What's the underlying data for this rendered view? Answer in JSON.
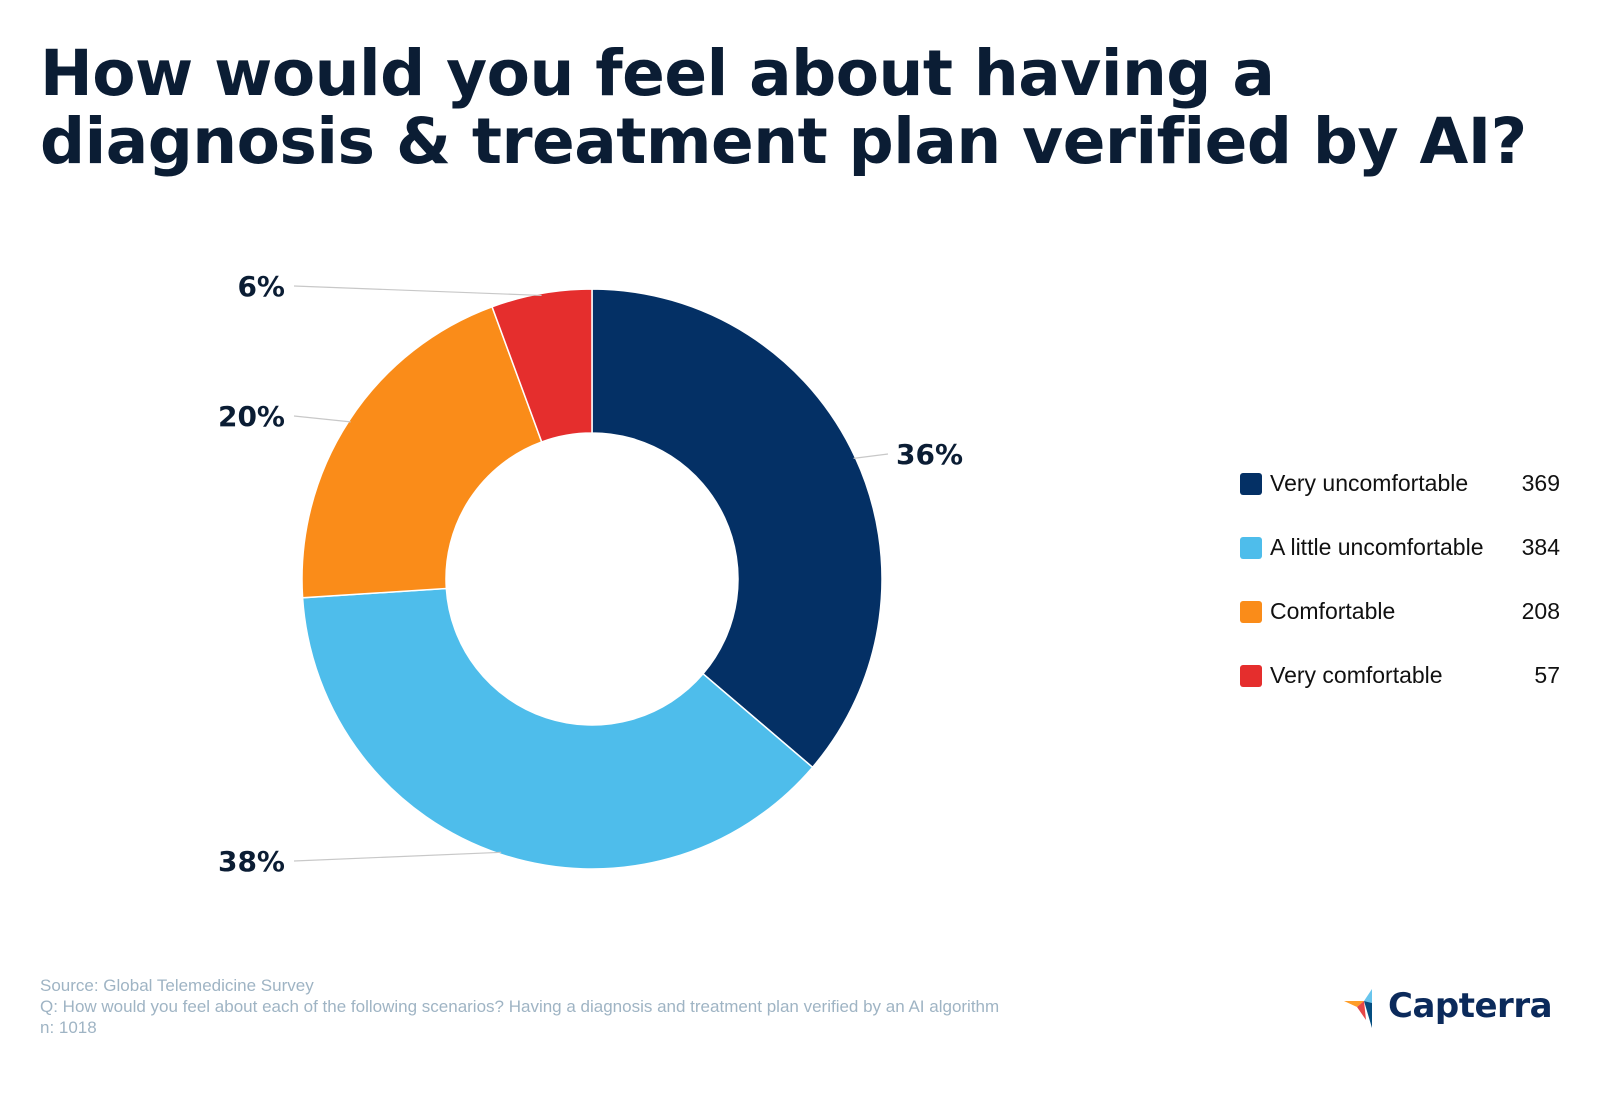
{
  "title_lines": [
    "How would you feel about having a",
    "diagnosis & treatment plan verified by AI?"
  ],
  "chart_data": {
    "type": "pie",
    "variant": "donut",
    "title": "How would you feel about having a diagnosis & treatment plan verified by AI?",
    "categories": [
      "Very uncomfortable",
      "A little uncomfortable",
      "Comfortable",
      "Very comfortable"
    ],
    "values": [
      369,
      384,
      208,
      57
    ],
    "percent_labels": [
      "36%",
      "38%",
      "20%",
      "6%"
    ],
    "colors": [
      "#043065",
      "#4ebdeb",
      "#fa8c19",
      "#e52e2d"
    ],
    "legend_position": "right",
    "total": 1018
  },
  "legend": {
    "items": [
      {
        "label": "Very uncomfortable",
        "count": "369",
        "color": "#043065"
      },
      {
        "label": "A little uncomfortable",
        "count": "384",
        "color": "#4ebdeb"
      },
      {
        "label": "Comfortable",
        "count": "208",
        "color": "#fa8c19"
      },
      {
        "label": "Very comfortable",
        "count": "57",
        "color": "#e52e2d"
      }
    ]
  },
  "footer": {
    "source": "Source: Global Telemedicine Survey",
    "question": "Q: How would you feel about each of the following scenarios? Having a diagnosis and treatment plan verified by an AI algorithm",
    "sample": "n: 1018"
  },
  "brand": {
    "name": "Capterra",
    "icon": "capterra-logo-icon",
    "colors": {
      "orange": "#ff9d28",
      "blue": "#68c5ed",
      "navy": "#044d80",
      "red": "#e54747"
    }
  }
}
